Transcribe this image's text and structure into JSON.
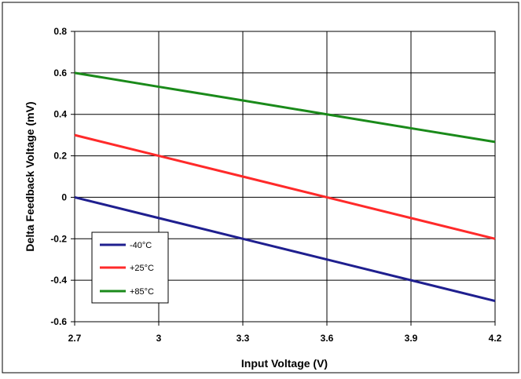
{
  "chart_data": {
    "type": "line",
    "title": "",
    "xlabel": "Input Voltage (V)",
    "ylabel": "Delta Feedback Voltage (mV)",
    "xlim": [
      2.7,
      4.2
    ],
    "ylim": [
      -0.6,
      0.8
    ],
    "x_ticks": [
      2.7,
      3.0,
      3.3,
      3.6,
      3.9,
      4.2
    ],
    "x_tick_labels": [
      "2.7",
      "3",
      "3.3",
      "3.6",
      "3.9",
      "4.2"
    ],
    "y_ticks": [
      -0.6,
      -0.4,
      -0.2,
      0,
      0.2,
      0.4,
      0.6,
      0.8
    ],
    "y_tick_labels": [
      "-0.6",
      "-0.4",
      "-0.2",
      "0",
      "0.2",
      "0.4",
      "0.6",
      "0.8"
    ],
    "grid": true,
    "legend_position": "bottom-left",
    "series": [
      {
        "name": "-40°C",
        "color": "#1f1f8f",
        "x": [
          2.7,
          3.0,
          3.3,
          3.6,
          3.9,
          4.2
        ],
        "values": [
          0.0,
          -0.1,
          -0.2,
          -0.3,
          -0.4,
          -0.5
        ]
      },
      {
        "name": "+25°C",
        "color": "#ff2a2a",
        "x": [
          2.7,
          3.0,
          3.3,
          3.6,
          3.9,
          4.2
        ],
        "values": [
          0.3,
          0.2,
          0.1,
          0.0,
          -0.1,
          -0.2
        ]
      },
      {
        "name": "+85°C",
        "color": "#1a8a1a",
        "x": [
          2.7,
          3.0,
          3.3,
          3.6,
          3.9,
          4.2
        ],
        "values": [
          0.6,
          0.533,
          0.467,
          0.4,
          0.333,
          0.267
        ]
      }
    ]
  }
}
